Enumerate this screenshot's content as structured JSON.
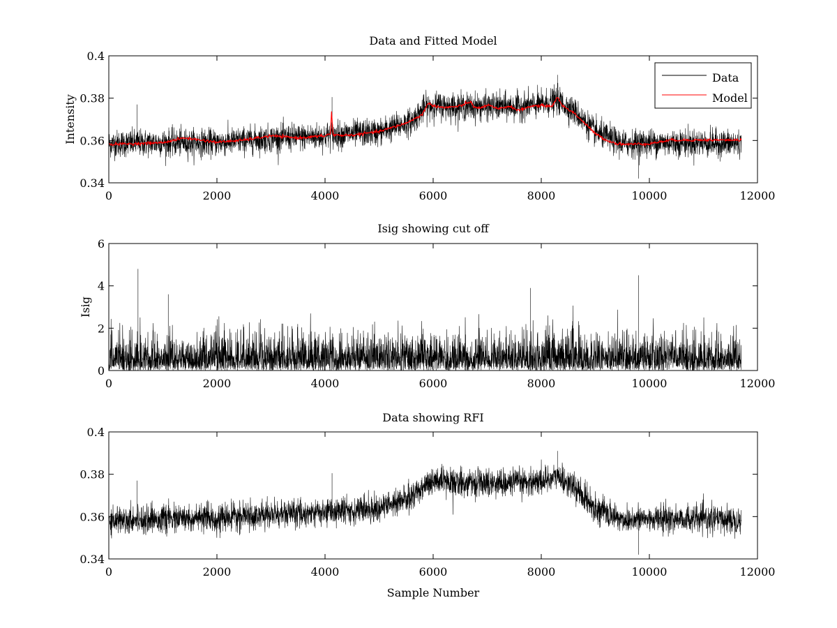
{
  "chart_data": [
    {
      "type": "line",
      "title": "Data and Fitted Model",
      "xlabel": "",
      "ylabel": "Intensity",
      "xlim": [
        0,
        12000
      ],
      "ylim": [
        0.34,
        0.4
      ],
      "xticks": [
        0,
        2000,
        4000,
        6000,
        8000,
        10000,
        12000
      ],
      "yticks": [
        0.34,
        0.36,
        0.38,
        0.4
      ],
      "xtick_labels": [
        "0",
        "2000",
        "4000",
        "6000",
        "8000",
        "10000",
        "12000"
      ],
      "ytick_labels": [
        "0.34",
        "0.36",
        "0.38",
        "0.4"
      ],
      "legend": {
        "position": "top-right",
        "entries": [
          {
            "label": "Data",
            "color": "#000000"
          },
          {
            "label": "Model",
            "color": "#ff0000"
          }
        ]
      },
      "n_samples": 11700,
      "series": [
        {
          "name": "Data",
          "color": "#000000",
          "kind": "noisy",
          "noise": 0.0035,
          "baseline_x": [
            0,
            1000,
            2000,
            3000,
            4000,
            4100,
            4150,
            5000,
            5600,
            5850,
            6000,
            6500,
            7000,
            7500,
            8000,
            8300,
            8600,
            9000,
            9500,
            10000,
            10500,
            11700
          ],
          "baseline_y": [
            0.3585,
            0.359,
            0.359,
            0.361,
            0.362,
            0.363,
            0.3625,
            0.364,
            0.369,
            0.3755,
            0.3765,
            0.376,
            0.376,
            0.376,
            0.377,
            0.379,
            0.374,
            0.364,
            0.3585,
            0.359,
            0.359,
            0.3585
          ],
          "spikes": [
            {
              "x": 4130,
              "y": 0.3805
            },
            {
              "x": 520,
              "y": 0.377
            },
            {
              "x": 8300,
              "y": 0.391
            },
            {
              "x": 9800,
              "y": 0.342
            }
          ]
        },
        {
          "name": "Model",
          "color": "#ff0000",
          "kind": "smooth",
          "x": [
            0,
            500,
            1000,
            1400,
            2000,
            2500,
            3000,
            3500,
            4000,
            4100,
            4120,
            4150,
            4500,
            5000,
            5500,
            5800,
            5900,
            6000,
            6200,
            6500,
            6700,
            6750,
            6900,
            7000,
            7200,
            7400,
            7600,
            7800,
            8000,
            8200,
            8300,
            8400,
            8600,
            8800,
            9000,
            9200,
            9400,
            9600,
            10000,
            10400,
            11700
          ],
          "y": [
            0.3582,
            0.3585,
            0.359,
            0.3612,
            0.3592,
            0.3602,
            0.3622,
            0.3612,
            0.3622,
            0.3632,
            0.3735,
            0.3625,
            0.3625,
            0.3642,
            0.3682,
            0.3722,
            0.3775,
            0.3765,
            0.3755,
            0.3762,
            0.3785,
            0.3755,
            0.3755,
            0.3768,
            0.3748,
            0.3762,
            0.3742,
            0.3762,
            0.3765,
            0.3762,
            0.3805,
            0.3762,
            0.3732,
            0.3682,
            0.3632,
            0.3602,
            0.3585,
            0.3582,
            0.3585,
            0.3602,
            0.3602
          ]
        }
      ]
    },
    {
      "type": "line",
      "title": "Isig showing cut off",
      "xlabel": "",
      "ylabel": "Isig",
      "xlim": [
        0,
        12000
      ],
      "ylim": [
        0,
        6
      ],
      "xticks": [
        0,
        2000,
        4000,
        6000,
        8000,
        10000,
        12000
      ],
      "yticks": [
        0,
        2,
        4,
        6
      ],
      "xtick_labels": [
        "0",
        "2000",
        "4000",
        "6000",
        "8000",
        "10000",
        "12000"
      ],
      "ytick_labels": [
        "0",
        "2",
        "4",
        "6"
      ],
      "n_samples": 11700,
      "series": [
        {
          "name": "Isig",
          "color": "#000000",
          "kind": "abs-noise",
          "scale": 0.8,
          "spikes": [
            {
              "x": 540,
              "y": 4.8
            },
            {
              "x": 9800,
              "y": 4.5
            },
            {
              "x": 7800,
              "y": 3.9
            },
            {
              "x": 1100,
              "y": 3.6
            }
          ]
        }
      ]
    },
    {
      "type": "line",
      "title": "Data showing RFI",
      "xlabel": "Sample Number",
      "ylabel": "",
      "xlim": [
        0,
        12000
      ],
      "ylim": [
        0.34,
        0.4
      ],
      "xticks": [
        0,
        2000,
        4000,
        6000,
        8000,
        10000,
        12000
      ],
      "yticks": [
        0.34,
        0.36,
        0.38,
        0.4
      ],
      "xtick_labels": [
        "0",
        "2000",
        "4000",
        "6000",
        "8000",
        "10000",
        "12000"
      ],
      "ytick_labels": [
        "0.34",
        "0.36",
        "0.38",
        "0.4"
      ],
      "n_samples": 11700,
      "series": [
        {
          "name": "Data",
          "color": "#000000",
          "kind": "noisy",
          "noise": 0.0035,
          "baseline_x": [
            0,
            1000,
            2000,
            3000,
            4000,
            4100,
            4150,
            5000,
            5600,
            5850,
            6000,
            6500,
            7000,
            7500,
            8000,
            8300,
            8600,
            9000,
            9500,
            10000,
            10500,
            11700
          ],
          "baseline_y": [
            0.3585,
            0.359,
            0.359,
            0.361,
            0.362,
            0.363,
            0.3625,
            0.364,
            0.369,
            0.3755,
            0.3765,
            0.376,
            0.376,
            0.376,
            0.377,
            0.379,
            0.374,
            0.364,
            0.3585,
            0.359,
            0.359,
            0.3585
          ],
          "spikes": [
            {
              "x": 4130,
              "y": 0.3805
            },
            {
              "x": 520,
              "y": 0.377
            },
            {
              "x": 8300,
              "y": 0.391
            },
            {
              "x": 9800,
              "y": 0.342
            }
          ]
        }
      ]
    }
  ]
}
